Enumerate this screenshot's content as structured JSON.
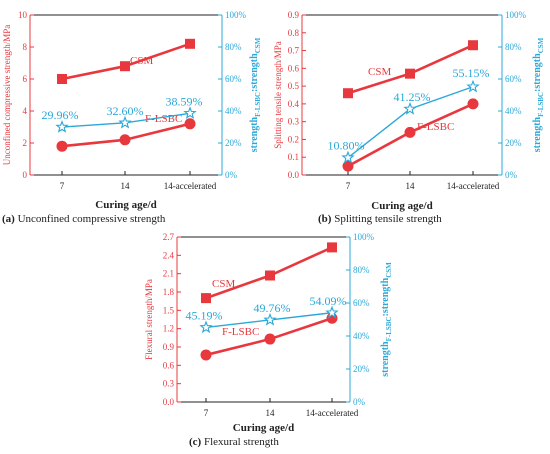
{
  "colors": {
    "csm": "#e8383d",
    "ratio": "#2aa8d8",
    "fl": "#e8383d"
  },
  "chart_data": [
    {
      "type": "line",
      "caption_letter": "(a)",
      "caption_text": "Unconfined compressive strength",
      "categories": [
        "7",
        "14",
        "14-accelerated"
      ],
      "xlabel": "Curing age/d",
      "ylabel": "Unconfined compressive strength/MPa",
      "ylabel_right_main": "strength",
      "ylabel_right_sub1": "F-LSBC",
      "ylabel_right_mid": ":strength",
      "ylabel_right_sub2": "CSM",
      "ylim": [
        0,
        10
      ],
      "yticks": [
        "0",
        "2",
        "4",
        "6",
        "8",
        "10"
      ],
      "ylim_right": [
        0,
        100
      ],
      "yticks_right": [
        "0%",
        "20%",
        "40%",
        "60%",
        "80%",
        "100%"
      ],
      "series": [
        {
          "name": "CSM",
          "axis": "left",
          "marker": "square",
          "values": [
            6.0,
            6.8,
            8.2
          ]
        },
        {
          "name": "F-LSBC",
          "axis": "left",
          "marker": "circle",
          "values": [
            1.8,
            2.2,
            3.2
          ]
        },
        {
          "name": "",
          "axis": "right",
          "marker": "star",
          "values": [
            29.96,
            32.6,
            38.59
          ],
          "labels": [
            "29.96%",
            "32.60%",
            "38.59%"
          ]
        }
      ]
    },
    {
      "type": "line",
      "caption_letter": "(b)",
      "caption_text": "Splitting tensile strength",
      "categories": [
        "7",
        "14",
        "14-accelerated"
      ],
      "xlabel": "Curing age/d",
      "ylabel": "Splitting tensile strength/MPa",
      "ylabel_right_main": "strength",
      "ylabel_right_sub1": "F-LSBC",
      "ylabel_right_mid": ":strength",
      "ylabel_right_sub2": "CSM",
      "ylim": [
        0,
        0.9
      ],
      "yticks": [
        "0.0",
        "0.1",
        "0.2",
        "0.3",
        "0.4",
        "0.5",
        "0.6",
        "0.7",
        "0.8",
        "0.9"
      ],
      "ylim_right": [
        0,
        100
      ],
      "yticks_right": [
        "0%",
        "20%",
        "40%",
        "60%",
        "80%",
        "100%"
      ],
      "series": [
        {
          "name": "CSM",
          "axis": "left",
          "marker": "square",
          "values": [
            0.46,
            0.57,
            0.73
          ]
        },
        {
          "name": "F-LSBC",
          "axis": "left",
          "marker": "circle",
          "values": [
            0.05,
            0.24,
            0.4
          ]
        },
        {
          "name": "",
          "axis": "right",
          "marker": "star",
          "values": [
            10.8,
            41.25,
            55.15
          ],
          "labels": [
            "10.80%",
            "41.25%",
            "55.15%"
          ]
        }
      ]
    },
    {
      "type": "line",
      "caption_letter": "(c)",
      "caption_text": "Flexural strength",
      "categories": [
        "7",
        "14",
        "14-accelerated"
      ],
      "xlabel": "Curing age/d",
      "ylabel": "Flexural strength/MPa",
      "ylabel_right_main": "strength",
      "ylabel_right_sub1": "F-LSBC",
      "ylabel_right_mid": ":strength",
      "ylabel_right_sub2": "CSM",
      "ylim": [
        0,
        2.7
      ],
      "yticks": [
        "0.0",
        "0.3",
        "0.6",
        "0.9",
        "1.2",
        "1.5",
        "1.8",
        "2.1",
        "2.4",
        "2.7"
      ],
      "ylim_right": [
        0,
        100
      ],
      "yticks_right": [
        "0%",
        "20%",
        "40%",
        "60%",
        "80%",
        "100%"
      ],
      "series": [
        {
          "name": "CSM",
          "axis": "left",
          "marker": "square",
          "values": [
            1.7,
            2.07,
            2.53
          ]
        },
        {
          "name": "F-LSBC",
          "axis": "left",
          "marker": "circle",
          "values": [
            0.77,
            1.03,
            1.37
          ]
        },
        {
          "name": "",
          "axis": "right",
          "marker": "star",
          "values": [
            45.19,
            49.76,
            54.09
          ],
          "labels": [
            "45.19%",
            "49.76%",
            "54.09%"
          ]
        }
      ]
    }
  ]
}
